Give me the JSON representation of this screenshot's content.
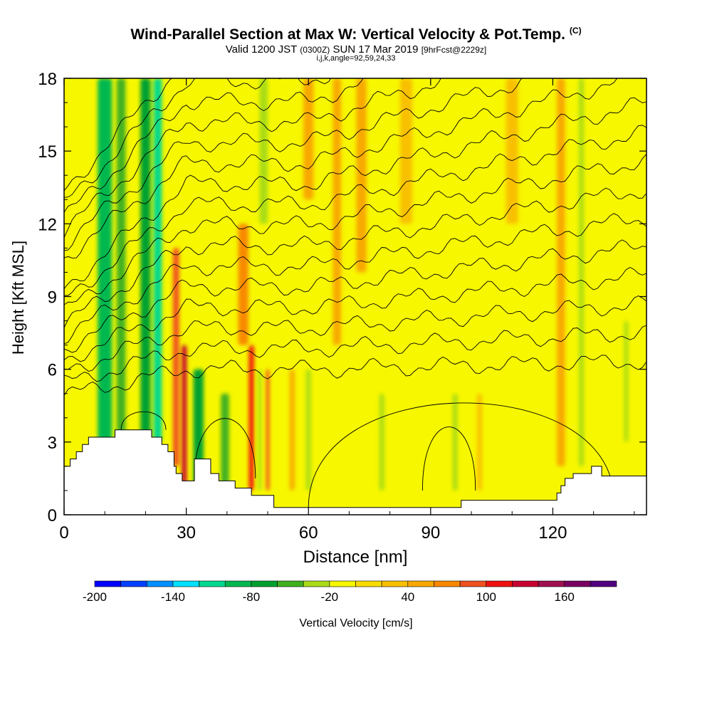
{
  "title": {
    "main": "Wind-Parallel Section at Max W: Vertical Velocity & Pot.Temp.",
    "copyright": "(C)",
    "valid_prefix": "Valid 1200 JST",
    "valid_utc": "(0300Z)",
    "valid_date": "SUN 17 Mar 2019",
    "forecast": "[9hrFcst@2229z]",
    "indices": "i,j,k,angle=92,59,24,33"
  },
  "colors": {
    "background_field": "#f7f700",
    "terrain": "#ffffff",
    "contour": "#000000"
  },
  "chart_data": {
    "type": "heatmap",
    "xlabel": "Distance [nm]",
    "ylabel": "Height [Kft MSL]",
    "xlim": [
      0,
      143
    ],
    "ylim": [
      0,
      18
    ],
    "xticks": [
      0,
      30,
      60,
      90,
      120
    ],
    "yticks": [
      0,
      3,
      6,
      9,
      12,
      15,
      18
    ],
    "colorbar": {
      "label": "Vertical Velocity [cm/s]",
      "ticks": [
        -200,
        -140,
        -80,
        -20,
        40,
        100,
        160
      ],
      "bins": [
        {
          "from": -200,
          "to": -180,
          "color": "#0000ff"
        },
        {
          "from": -180,
          "to": -160,
          "color": "#0040ff"
        },
        {
          "from": -160,
          "to": -140,
          "color": "#0090ff"
        },
        {
          "from": -140,
          "to": -120,
          "color": "#00e0ff"
        },
        {
          "from": -120,
          "to": -100,
          "color": "#00d890"
        },
        {
          "from": -100,
          "to": -80,
          "color": "#00b850"
        },
        {
          "from": -80,
          "to": -60,
          "color": "#00a030"
        },
        {
          "from": -60,
          "to": -40,
          "color": "#40b020"
        },
        {
          "from": -40,
          "to": -20,
          "color": "#a8dc18"
        },
        {
          "from": -20,
          "to": 0,
          "color": "#f7f700"
        },
        {
          "from": 0,
          "to": 20,
          "color": "#f8dc00"
        },
        {
          "from": 20,
          "to": 40,
          "color": "#f8c000"
        },
        {
          "from": 40,
          "to": 60,
          "color": "#f8a800"
        },
        {
          "from": 60,
          "to": 80,
          "color": "#f88800"
        },
        {
          "from": 80,
          "to": 100,
          "color": "#f05020"
        },
        {
          "from": 100,
          "to": 120,
          "color": "#f01010"
        },
        {
          "from": 120,
          "to": 140,
          "color": "#c80030"
        },
        {
          "from": 140,
          "to": 160,
          "color": "#a01050"
        },
        {
          "from": 160,
          "to": 180,
          "color": "#780060"
        },
        {
          "from": 180,
          "to": 200,
          "color": "#500080"
        }
      ]
    },
    "terrain_kft": [
      [
        0,
        2.0
      ],
      [
        1.5,
        2.3
      ],
      [
        3,
        2.6
      ],
      [
        4.5,
        2.9
      ],
      [
        6,
        3.2
      ],
      [
        12,
        3.2
      ],
      [
        12.5,
        3.5
      ],
      [
        21,
        3.5
      ],
      [
        21.5,
        3.2
      ],
      [
        24,
        2.9
      ],
      [
        25.5,
        2.6
      ],
      [
        27,
        2.0
      ],
      [
        27.5,
        1.7
      ],
      [
        29,
        1.4
      ],
      [
        31,
        1.4
      ],
      [
        32,
        2.3
      ],
      [
        35,
        2.3
      ],
      [
        36,
        1.7
      ],
      [
        38,
        1.4
      ],
      [
        41,
        1.4
      ],
      [
        42,
        1.1
      ],
      [
        44,
        1.1
      ],
      [
        46,
        0.8
      ],
      [
        48,
        0.8
      ],
      [
        51,
        0.8
      ],
      [
        51.5,
        0.3
      ],
      [
        68,
        0.3
      ],
      [
        72,
        0.3
      ],
      [
        84,
        0.3
      ],
      [
        97,
        0.3
      ],
      [
        97.5,
        0.6
      ],
      [
        120,
        0.6
      ],
      [
        121,
        0.9
      ],
      [
        122,
        1.2
      ],
      [
        123,
        1.5
      ],
      [
        125,
        1.7
      ],
      [
        129,
        1.7
      ],
      [
        129.5,
        2.0
      ],
      [
        131,
        2.0
      ],
      [
        132,
        1.6
      ],
      [
        143,
        1.6
      ]
    ],
    "w_features": [
      {
        "x": 10,
        "y": [
          1,
          18
        ],
        "w": 3.5,
        "value": -100
      },
      {
        "x": 14,
        "y": [
          2,
          18
        ],
        "w": 2.2,
        "value": -60
      },
      {
        "x": 20,
        "y": [
          3,
          18
        ],
        "w": 2.5,
        "value": -70
      },
      {
        "x": 23,
        "y": [
          3,
          18
        ],
        "w": 2.0,
        "value": -110
      },
      {
        "x": 27.5,
        "y": [
          2,
          11
        ],
        "w": 1.5,
        "value": 90
      },
      {
        "x": 29.5,
        "y": [
          1,
          7
        ],
        "w": 1.2,
        "value": 120
      },
      {
        "x": 33,
        "y": [
          1,
          6
        ],
        "w": 2.5,
        "value": -70
      },
      {
        "x": 39.5,
        "y": [
          1,
          5
        ],
        "w": 2.0,
        "value": -60
      },
      {
        "x": 44,
        "y": [
          7,
          12
        ],
        "w": 2.5,
        "value": 70
      },
      {
        "x": 46,
        "y": [
          1,
          7
        ],
        "w": 1.2,
        "value": 100
      },
      {
        "x": 48,
        "y": [
          1,
          6
        ],
        "w": 0.8,
        "value": -40
      },
      {
        "x": 50,
        "y": [
          1,
          6
        ],
        "w": 0.8,
        "value": 80
      },
      {
        "x": 49,
        "y": [
          12,
          18
        ],
        "w": 2.0,
        "value": -40
      },
      {
        "x": 56,
        "y": [
          1,
          6
        ],
        "w": 1.2,
        "value": 40
      },
      {
        "x": 60,
        "y": [
          1,
          6
        ],
        "w": 1.2,
        "value": -30
      },
      {
        "x": 60,
        "y": [
          13,
          18
        ],
        "w": 2.5,
        "value": 40
      },
      {
        "x": 67,
        "y": [
          7,
          18
        ],
        "w": 2.0,
        "value": 40
      },
      {
        "x": 73,
        "y": [
          10,
          18
        ],
        "w": 2.5,
        "value": 50
      },
      {
        "x": 78,
        "y": [
          1,
          5
        ],
        "w": 1.2,
        "value": -30
      },
      {
        "x": 84,
        "y": [
          12,
          18
        ],
        "w": 3.0,
        "value": 30
      },
      {
        "x": 96,
        "y": [
          1,
          5
        ],
        "w": 1.2,
        "value": -30
      },
      {
        "x": 102,
        "y": [
          1,
          5
        ],
        "w": 1.2,
        "value": 30
      },
      {
        "x": 110,
        "y": [
          12,
          18
        ],
        "w": 3.0,
        "value": 30
      },
      {
        "x": 122,
        "y": [
          2,
          18
        ],
        "w": 2.0,
        "value": 50
      },
      {
        "x": 127,
        "y": [
          2,
          18
        ],
        "w": 1.2,
        "value": -30
      },
      {
        "x": 138,
        "y": [
          3,
          8
        ],
        "w": 1.0,
        "value": -40
      }
    ]
  }
}
